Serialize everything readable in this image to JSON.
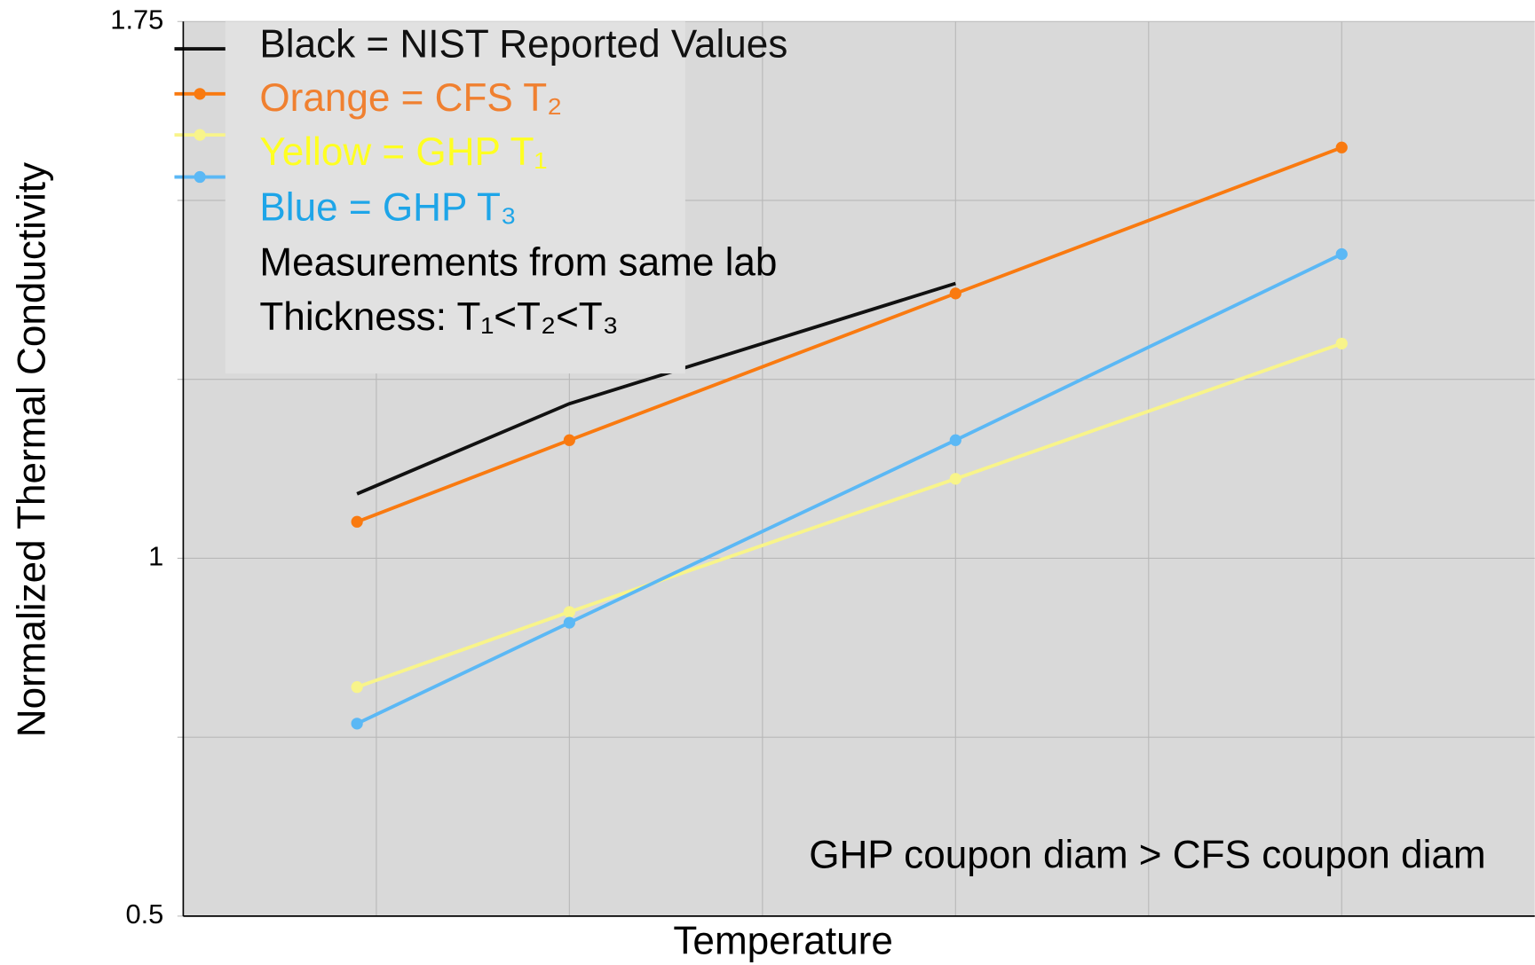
{
  "chart_data": {
    "type": "line",
    "y_label": "Normalized Thermal Conductivity",
    "x_label": "Temperature",
    "xlim": [
      0,
      7
    ],
    "xgrid": [
      1,
      2,
      3,
      4,
      5,
      6
    ],
    "ylim": [
      0.5,
      1.75
    ],
    "yticks": [
      0.5,
      1,
      1.75
    ],
    "minor_yticks": [
      0.75,
      1.25,
      1.5
    ],
    "grid": true,
    "x": [
      0.9,
      2,
      4,
      6
    ],
    "series": [
      {
        "name": "Black = NIST Reported Values",
        "color": "#111111",
        "label_color": "#111111",
        "markers": false,
        "values": [
          1.09,
          1.216,
          1.384,
          null
        ]
      },
      {
        "name": "Orange = CFS T₂",
        "color": "#f97a10",
        "label_color": "#f08030",
        "markers": true,
        "values": [
          1.051,
          1.165,
          1.37,
          1.574
        ]
      },
      {
        "name": "Yellow = GHP T₁",
        "color": "#f8f48a",
        "label_color": "#ffff22",
        "markers": true,
        "values": [
          0.82,
          0.925,
          1.111,
          1.3
        ]
      },
      {
        "name": "Blue = GHP T₃",
        "color": "#5bb8f5",
        "label_color": "#1ea5e8",
        "markers": true,
        "values": [
          0.769,
          0.91,
          1.165,
          1.425
        ]
      }
    ],
    "legend_notes": [
      "Measurements from same lab",
      "Thickness:  T₁<T₂<T₃"
    ],
    "annotation": "GHP coupon diam > CFS coupon diam"
  }
}
